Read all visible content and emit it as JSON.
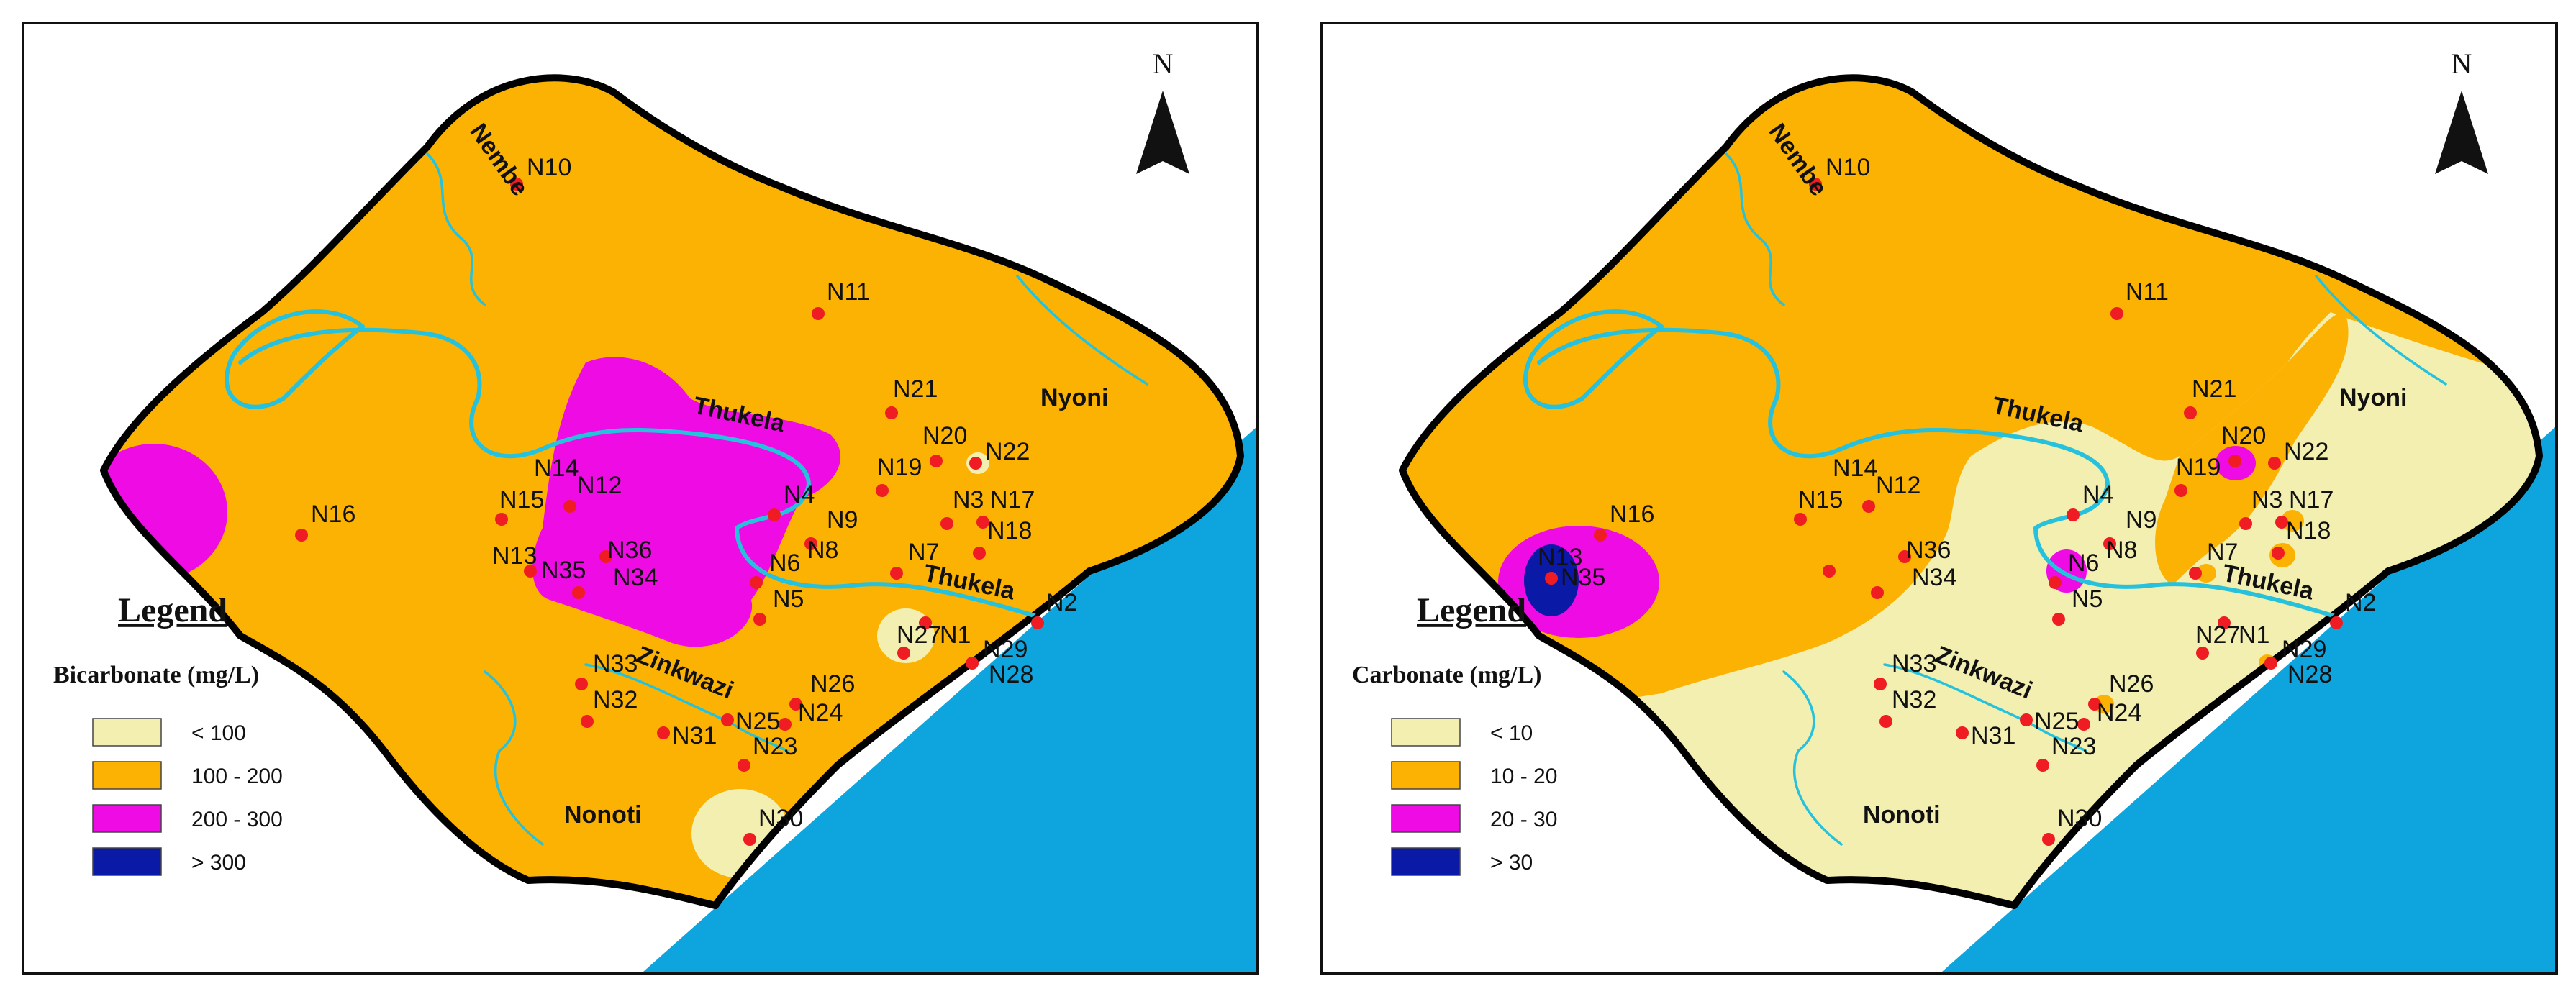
{
  "colors": {
    "class1": "#f3efb0",
    "class2": "#fbb203",
    "class3": "#ee0be4",
    "class4": "#0b1aa6",
    "sea": "#0ea5df",
    "river": "#26c2dd",
    "point": "#ef1c24"
  },
  "north": "N",
  "maps": [
    {
      "legend_title": "Legend",
      "parameter": "Bicarbonate (mg/L)",
      "classes": [
        "< 100",
        "100 - 200",
        "200 - 300",
        "> 300"
      ]
    },
    {
      "legend_title": "Legend",
      "parameter": "Carbonate (mg/L)",
      "classes": [
        "< 10",
        "10 - 20",
        "20 - 30",
        "> 30"
      ]
    }
  ],
  "rivers": [
    "Nembe",
    "Thukela",
    "Nyoni",
    "Thukela",
    "Zinkwazi",
    "Nonoti"
  ],
  "stations": [
    "N10",
    "N11",
    "N21",
    "N20",
    "N22",
    "N19",
    "N3",
    "N17",
    "N18",
    "N14",
    "N15",
    "N12",
    "N16",
    "N4",
    "N9",
    "N8",
    "N36",
    "N13",
    "N35",
    "N34",
    "N6",
    "N7",
    "N5",
    "N2",
    "N27",
    "N1",
    "N29",
    "N28",
    "N33",
    "N26",
    "N32",
    "N24",
    "N25",
    "N31",
    "N23",
    "N30"
  ]
}
